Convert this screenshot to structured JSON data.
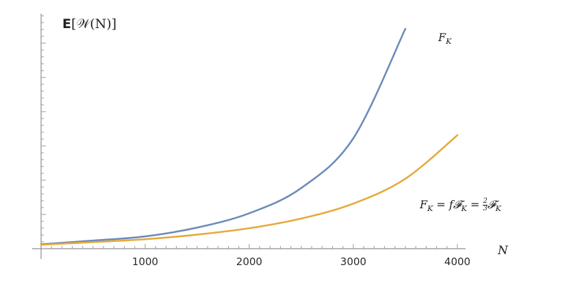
{
  "chart_data": {
    "type": "line",
    "title": "",
    "xlabel": "N",
    "ylabel": {
      "bold_prefix": "E",
      "rest": "[𝒲(N)]"
    },
    "xlim": [
      0,
      4000
    ],
    "ylim": [
      0,
      1
    ],
    "x_ticks": [
      1000,
      2000,
      3000,
      4000
    ],
    "grid": false,
    "series": [
      {
        "label_text": "F_K",
        "color": "#6b8cba",
        "x": [
          0,
          500,
          1000,
          1500,
          2000,
          2500,
          3000,
          3500
        ],
        "y": [
          0.02,
          0.037,
          0.056,
          0.096,
          0.161,
          0.276,
          0.502,
          1.0
        ]
      },
      {
        "label_text": "F_K = f𝓕_K = ⅔𝓕_K",
        "color": "#e5a93b",
        "x": [
          0,
          500,
          1000,
          1500,
          2000,
          2500,
          3000,
          3500,
          4000
        ],
        "y": [
          0.018,
          0.03,
          0.043,
          0.064,
          0.093,
          0.137,
          0.205,
          0.318,
          0.516
        ]
      }
    ]
  }
}
